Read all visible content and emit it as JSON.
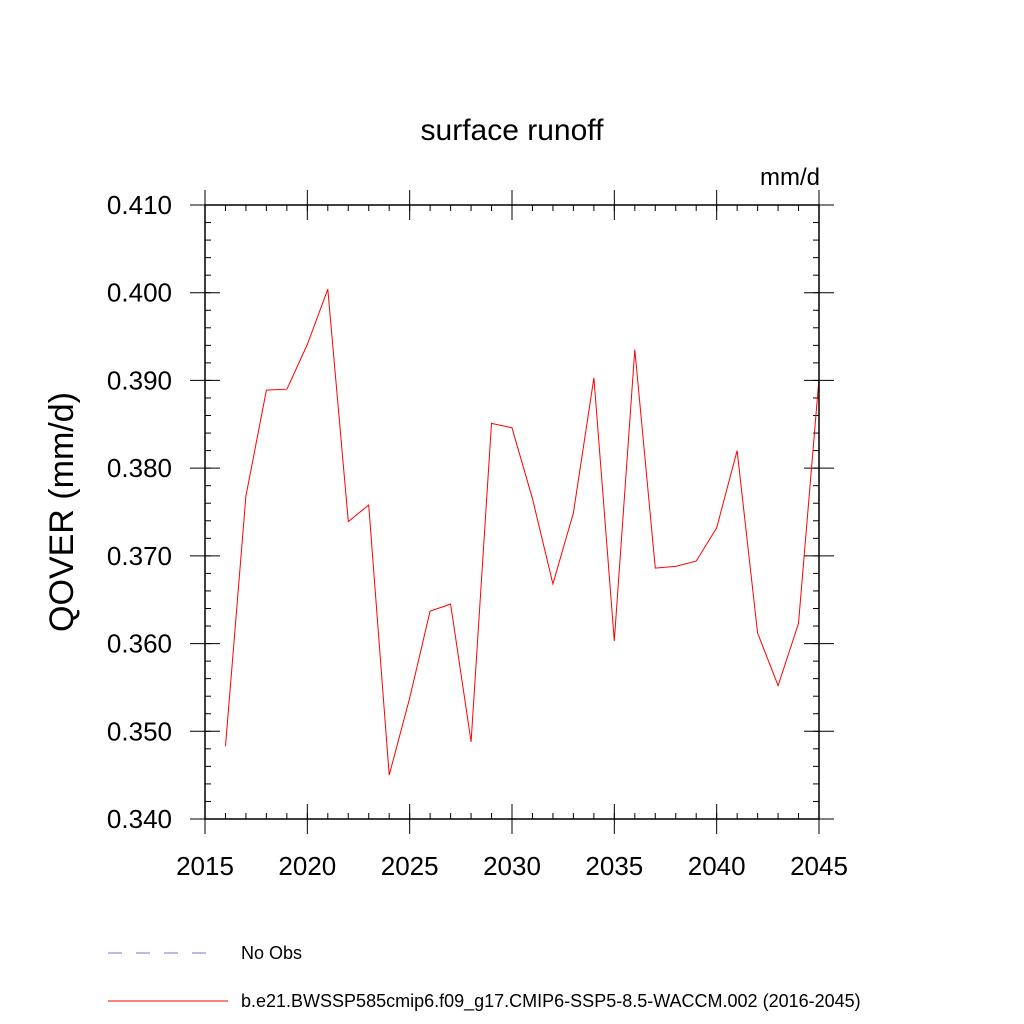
{
  "chart_data": {
    "type": "line",
    "title": "surface runoff",
    "units_label": "mm/d",
    "xlabel": "",
    "ylabel": "QOVER  (mm/d)",
    "xlim": [
      2015,
      2045
    ],
    "ylim": [
      0.34,
      0.41
    ],
    "x_ticks": [
      2015,
      2020,
      2025,
      2030,
      2035,
      2040,
      2045
    ],
    "x_tick_labels": [
      "2015",
      "2020",
      "2025",
      "2030",
      "2035",
      "2040",
      "2045"
    ],
    "y_ticks": [
      0.34,
      0.35,
      0.36,
      0.37,
      0.38,
      0.39,
      0.4,
      0.41
    ],
    "y_tick_labels": [
      "0.340",
      "0.350",
      "0.360",
      "0.370",
      "0.380",
      "0.390",
      "0.400",
      "0.410"
    ],
    "x_minor_step": 1,
    "y_minor_step": 0.002,
    "grid": false,
    "legend_position": "bottom",
    "series": [
      {
        "name": "b.e21.BWSSP585cmip6.f09_g17.CMIP6-SSP5-8.5-WACCM.002 (2016-2045)",
        "color": "#ff0000",
        "style": "solid",
        "x": [
          2016,
          2017,
          2018,
          2019,
          2020,
          2021,
          2022,
          2023,
          2024,
          2025,
          2026,
          2027,
          2028,
          2029,
          2030,
          2031,
          2032,
          2033,
          2034,
          2035,
          2036,
          2037,
          2038,
          2039,
          2040,
          2041,
          2042,
          2043,
          2044,
          2045
        ],
        "values": [
          0.3483,
          0.3768,
          0.3889,
          0.389,
          0.3941,
          0.4004,
          0.3739,
          0.3758,
          0.345,
          0.3538,
          0.3637,
          0.3645,
          0.3488,
          0.3851,
          0.3846,
          0.3765,
          0.3668,
          0.3749,
          0.3903,
          0.3603,
          0.3935,
          0.3686,
          0.3688,
          0.3694,
          0.3732,
          0.382,
          0.3612,
          0.3552,
          0.3623,
          0.3902
        ]
      }
    ],
    "legend": [
      {
        "label": "No Obs",
        "color": "#7777cc",
        "style": "dashed"
      },
      {
        "label": "b.e21.BWSSP585cmip6.f09_g17.CMIP6-SSP5-8.5-WACCM.002 (2016-2045)",
        "color": "#ff0000",
        "style": "solid"
      }
    ]
  }
}
